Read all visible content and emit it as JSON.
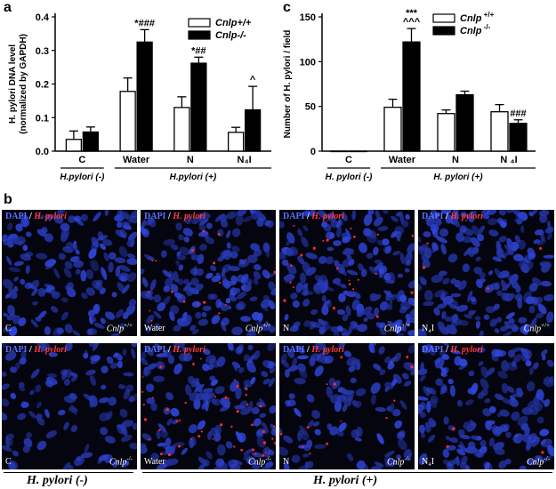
{
  "figure": {
    "panel_a_letter": "a",
    "panel_c_letter": "c",
    "panel_b_letter": "b"
  },
  "chart_data": [
    {
      "type": "bar",
      "panel": "a",
      "ylabel": "H. pylori DNA level (normalized by GAPDH)",
      "ylabel_line1": "H. pylori DNA level",
      "ylabel_line2": "(normalized by GAPDH)",
      "ylim": [
        0.0,
        0.4
      ],
      "yticks": [
        "0.0",
        "0.1",
        "0.2",
        "0.3",
        "0.4"
      ],
      "categories": [
        "C",
        "Water",
        "N",
        "N4I"
      ],
      "category_labels": [
        "C",
        "Water",
        "N",
        "N₄I"
      ],
      "group_labels": [
        "H.pylori (-)",
        "H.pylori (+)"
      ],
      "legend": [
        "Cnlp+/+",
        "Cnlp-/-"
      ],
      "legend_placement": "top-right",
      "series": [
        {
          "name": "Cnlp+/+",
          "values": [
            0.035,
            0.178,
            0.13,
            0.056
          ],
          "errors": [
            0.025,
            0.04,
            0.032,
            0.015
          ]
        },
        {
          "name": "Cnlp-/-",
          "values": [
            0.057,
            0.325,
            0.262,
            0.123
          ],
          "errors": [
            0.015,
            0.037,
            0.018,
            0.07
          ]
        }
      ],
      "annotations": [
        "",
        "*###",
        "*##",
        "^"
      ]
    },
    {
      "type": "bar",
      "panel": "c",
      "ylabel": "Number of H. pylori / field",
      "ylim": [
        0,
        150
      ],
      "yticks": [
        "0",
        "50",
        "100",
        "150"
      ],
      "categories": [
        "C",
        "Water",
        "N",
        "N4I"
      ],
      "category_labels": [
        "C",
        "Water",
        "N",
        "N ₄I"
      ],
      "group_labels": [
        "H. pylori (-)",
        "H. pylori (+)"
      ],
      "legend": [
        "Cnlp +/+",
        "Cnlp -/-"
      ],
      "legend_placement": "top-right",
      "series": [
        {
          "name": "Cnlp +/+",
          "values": [
            0,
            49,
            42,
            44
          ],
          "errors": [
            0,
            9,
            4,
            8
          ]
        },
        {
          "name": "Cnlp -/-",
          "values": [
            0,
            122,
            63,
            31
          ],
          "errors": [
            0,
            15,
            4,
            4
          ]
        }
      ],
      "annotations": [
        "",
        "***\n^^^",
        "",
        "###"
      ]
    }
  ],
  "micrographs": {
    "label_dapi": "DAPI",
    "label_slash": "/",
    "label_hp": "H. pylori",
    "top_row": [
      {
        "condition": "C",
        "genotype": "Cnlp",
        "sup": "+/+"
      },
      {
        "condition": "Water",
        "genotype": "Cnlp",
        "sup": "+/+"
      },
      {
        "condition": "N",
        "genotype": "Cnlp",
        "sup": "+/+"
      },
      {
        "condition": "N₄I",
        "genotype": "Cnlp",
        "sup": "+/+"
      }
    ],
    "bottom_row": [
      {
        "condition": "C",
        "genotype": "Cnlp",
        "sup": "-/-"
      },
      {
        "condition": "Water",
        "genotype": "Cnlp",
        "sup": "-/-"
      },
      {
        "condition": "N",
        "genotype": "Cnlp",
        "sup": "-/-"
      },
      {
        "condition": "N₄I",
        "genotype": "Cnlp",
        "sup": "-/-"
      }
    ],
    "colors": {
      "nuclei": "#2b3fd6",
      "bacteria": "#ff2a2a",
      "background": "#050510"
    }
  },
  "bottom_labels": {
    "neg": "H. pylori (-)",
    "pos": "H. pylori (+)"
  }
}
